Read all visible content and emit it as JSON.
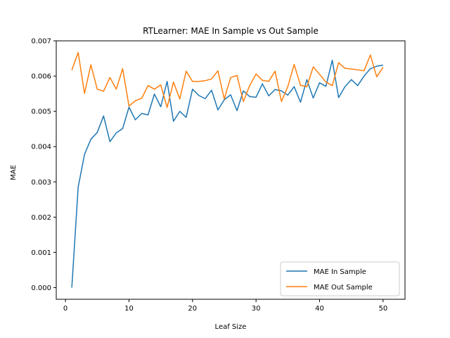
{
  "chart_data": {
    "type": "line",
    "title": "RTLearner: MAE In Sample vs Out Sample",
    "xlabel": "Leaf Size",
    "ylabel": "MAE",
    "xlim": [
      -1.45,
      53.45
    ],
    "ylim": [
      -0.00033,
      0.007
    ],
    "xticks": [
      0,
      10,
      20,
      30,
      40,
      50
    ],
    "yticks": [
      0.0,
      0.001,
      0.002,
      0.003,
      0.004,
      0.005,
      0.006,
      0.007
    ],
    "ytick_labels": [
      "0.000",
      "0.001",
      "0.002",
      "0.003",
      "0.004",
      "0.005",
      "0.006",
      "0.007"
    ],
    "grid": false,
    "legend_position": "lower-right",
    "x": [
      1,
      2,
      3,
      4,
      5,
      6,
      7,
      8,
      9,
      10,
      11,
      12,
      13,
      14,
      15,
      16,
      17,
      18,
      19,
      20,
      21,
      22,
      23,
      24,
      25,
      26,
      27,
      28,
      29,
      30,
      31,
      32,
      33,
      34,
      35,
      36,
      37,
      38,
      39,
      40,
      41,
      42,
      43,
      44,
      45,
      46,
      47,
      48,
      49,
      50
    ],
    "series": [
      {
        "name": "MAE In Sample",
        "color": "#1f77b4",
        "values": [
          0.0,
          0.00285,
          0.00378,
          0.00421,
          0.0044,
          0.00487,
          0.00414,
          0.00439,
          0.00451,
          0.00512,
          0.00476,
          0.00494,
          0.0049,
          0.00549,
          0.00513,
          0.00585,
          0.00472,
          0.005,
          0.00483,
          0.00563,
          0.00545,
          0.00536,
          0.0056,
          0.00504,
          0.00533,
          0.00547,
          0.00502,
          0.00558,
          0.00542,
          0.0054,
          0.00578,
          0.00544,
          0.00562,
          0.00558,
          0.00546,
          0.0057,
          0.00526,
          0.0059,
          0.00538,
          0.00581,
          0.00571,
          0.00645,
          0.00539,
          0.0057,
          0.0059,
          0.00573,
          0.006,
          0.00621,
          0.00628,
          0.00631
        ]
      },
      {
        "name": "MAE Out Sample",
        "color": "#ff7f0e",
        "values": [
          0.00617,
          0.00667,
          0.00551,
          0.00632,
          0.00563,
          0.00557,
          0.00596,
          0.00563,
          0.00621,
          0.00515,
          0.0053,
          0.00537,
          0.00573,
          0.00563,
          0.00575,
          0.00511,
          0.00583,
          0.00535,
          0.00614,
          0.00585,
          0.00585,
          0.00587,
          0.00592,
          0.00615,
          0.00535,
          0.00596,
          0.00602,
          0.00528,
          0.00573,
          0.00606,
          0.00588,
          0.00585,
          0.00614,
          0.00528,
          0.0057,
          0.00633,
          0.00574,
          0.0057,
          0.00626,
          0.00605,
          0.00583,
          0.00573,
          0.00638,
          0.00622,
          0.0062,
          0.00618,
          0.00615,
          0.0066,
          0.00598,
          0.00625
        ]
      }
    ]
  }
}
